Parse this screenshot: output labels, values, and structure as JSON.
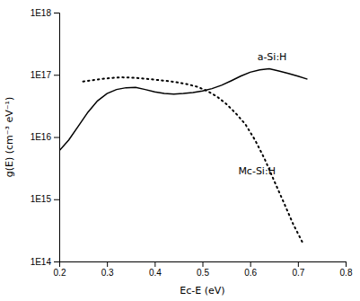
{
  "chart_data": {
    "type": "line",
    "xlabel": "Ec-E (eV)",
    "ylabel": "g(E)  (cm⁻³ eV⁻¹)",
    "log": "y",
    "grid": false,
    "xlim": [
      0.2,
      0.8
    ],
    "ylim": [
      100000000000000.0,
      1e+18
    ],
    "xticks": [
      0.2,
      0.3,
      0.4,
      0.5,
      0.6,
      0.7,
      0.8
    ],
    "yticks": [
      {
        "value": 100000000000000.0,
        "label": "1E14"
      },
      {
        "value": 1000000000000000.0,
        "label": "1E15"
      },
      {
        "value": 1e+16,
        "label": "1E16"
      },
      {
        "value": 1e+17,
        "label": "1E17"
      },
      {
        "value": 1e+18,
        "label": "1E18"
      }
    ],
    "series": [
      {
        "color": "black",
        "line_style": "solid",
        "x": [
          0.2,
          0.22,
          0.24,
          0.26,
          0.28,
          0.3,
          0.32,
          0.34,
          0.36,
          0.38,
          0.4,
          0.42,
          0.44,
          0.46,
          0.48,
          0.5,
          0.52,
          0.54,
          0.56,
          0.58,
          0.6,
          0.62,
          0.64,
          0.66,
          0.68,
          0.7,
          0.72
        ],
        "values": [
          6000000000000000.0,
          9000000000000000.0,
          1.5e+16,
          2.5e+16,
          3.8e+16,
          5e+16,
          5.8e+16,
          6.2e+16,
          6.3e+16,
          5.8e+16,
          5.3e+16,
          5e+16,
          4.9e+16,
          5e+16,
          5.2e+16,
          5.5e+16,
          6e+16,
          6.8e+16,
          8e+16,
          9.5e+16,
          1.1e+17,
          1.2e+17,
          1.25e+17,
          1.15e+17,
          1.05e+17,
          9.5e+16,
          8.5e+16
        ]
      },
      {
        "color": "black",
        "line_style": "dotted",
        "x": [
          0.25,
          0.27,
          0.29,
          0.31,
          0.33,
          0.35,
          0.37,
          0.39,
          0.41,
          0.43,
          0.45,
          0.47,
          0.49,
          0.51,
          0.53,
          0.55,
          0.57,
          0.59,
          0.61,
          0.63,
          0.65,
          0.67,
          0.69,
          0.71
        ],
        "values": [
          7.8e+16,
          8.2e+16,
          8.6e+16,
          8.9e+16,
          9.1e+16,
          9e+16,
          8.8e+16,
          8.5e+16,
          8.2e+16,
          7.9e+16,
          7.5e+16,
          7e+16,
          6.4e+16,
          5.5e+16,
          4.5e+16,
          3.4e+16,
          2.4e+16,
          1.6e+16,
          9000000000000000.0,
          4500000000000000.0,
          2000000000000000.0,
          900000000000000.0,
          400000000000000.0,
          200000000000000.0
        ]
      }
    ],
    "annotations": [
      {
        "text": "a-Si:H",
        "x": 0.615,
        "y": 1.55e+17
      },
      {
        "text": "Mc-Si:H",
        "x": 0.575,
        "y": 3500000000000000.0
      }
    ]
  }
}
